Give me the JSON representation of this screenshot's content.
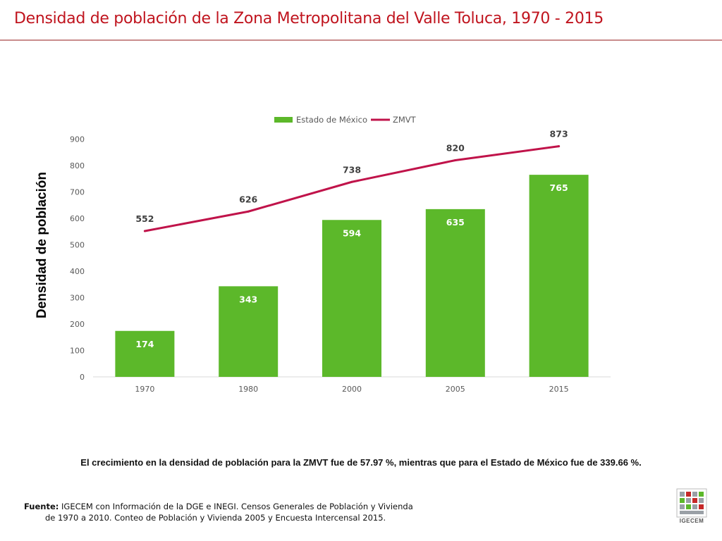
{
  "title": "Densidad de población de la Zona Metropolitana del Valle Toluca, 1970 - 2015",
  "chart_data": {
    "type": "bar",
    "categories": [
      "1970",
      "1980",
      "2000",
      "2005",
      "2015"
    ],
    "series": [
      {
        "name": "Estado de México",
        "kind": "bar",
        "color": "#5cb82a",
        "values": [
          174,
          343,
          594,
          635,
          765
        ]
      },
      {
        "name": "ZMVT",
        "kind": "line",
        "color": "#c0134a",
        "values": [
          552,
          626,
          738,
          820,
          873
        ]
      }
    ],
    "ylabel": "Densidad de población",
    "ylim": [
      0,
      900
    ],
    "yticks": [
      "0",
      "100",
      "200",
      "300",
      "400",
      "500",
      "600",
      "700",
      "800",
      "900"
    ],
    "legend_position": "top-center",
    "grid": false
  },
  "note": "El crecimiento en la densidad de población para la ZMVT fue de 57.97 %, mientras que para el Estado de México fue de 339.66 %.",
  "source": {
    "label": "Fuente:",
    "line1": "IGECEM con Información de la DGE e INEGI. Censos Generales de Población y Vivienda",
    "line2": "de 1970 a 2010. Conteo de Población y Vivienda 2005 y Encuesta Intercensal 2015."
  },
  "logo_text": "IGECEM"
}
